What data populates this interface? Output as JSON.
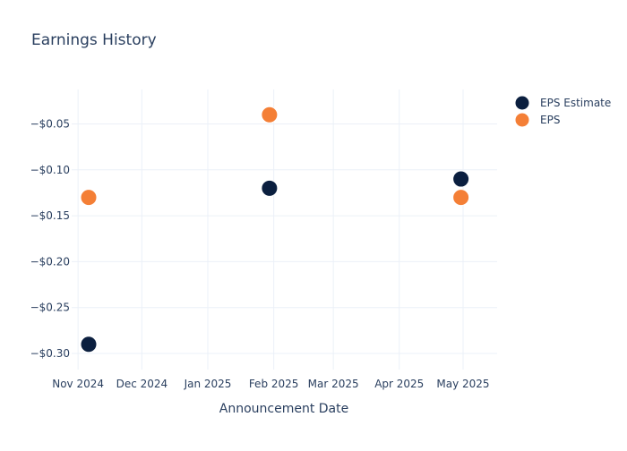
{
  "chart_data": {
    "type": "scatter",
    "title": "Earnings History",
    "xlabel": "Announcement Date",
    "ylabel": "",
    "x_ticks": [
      "Nov 2024",
      "Dec 2024",
      "Jan 2025",
      "Feb 2025",
      "Mar 2025",
      "Apr 2025",
      "May 2025"
    ],
    "x_tick_dates": [
      "2024-11-01",
      "2024-12-01",
      "2025-01-01",
      "2025-02-01",
      "2025-03-01",
      "2025-04-01",
      "2025-05-01"
    ],
    "x_range": [
      "2024-10-29",
      "2025-05-17"
    ],
    "y_ticks": [
      -0.05,
      -0.1,
      -0.15,
      -0.2,
      -0.25,
      -0.3
    ],
    "y_tick_labels": [
      "−$0.05",
      "−$0.10",
      "−$0.15",
      "−$0.20",
      "−$0.25",
      "−$0.30"
    ],
    "ylim": [
      -0.3175,
      -0.0125
    ],
    "grid": true,
    "legend_position": "top-right",
    "series": [
      {
        "name": "EPS Estimate",
        "color": "#0b1f3f",
        "points": [
          {
            "x": "2024-11-06",
            "y": -0.29
          },
          {
            "x": "2025-01-30",
            "y": -0.12
          },
          {
            "x": "2025-04-30",
            "y": -0.11
          }
        ]
      },
      {
        "name": "EPS",
        "color": "#f47f36",
        "points": [
          {
            "x": "2024-11-06",
            "y": -0.13
          },
          {
            "x": "2025-01-30",
            "y": -0.04
          },
          {
            "x": "2025-04-30",
            "y": -0.13
          }
        ]
      }
    ]
  }
}
